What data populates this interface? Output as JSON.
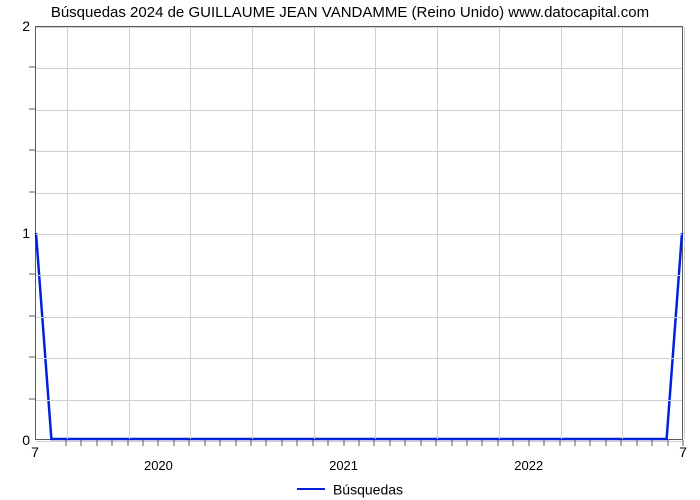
{
  "chart": {
    "type": "line",
    "title": "Búsquedas 2024 de GUILLAUME JEAN VANDAMME (Reino Unido) www.datocapital.com",
    "title_fontsize": 15,
    "title_color": "#000000",
    "background_color": "#ffffff",
    "plot_border_color": "#5b5b5b",
    "grid_color": "#cfcfcf",
    "x_axis": {
      "range_min": 0,
      "range_max": 42,
      "major_gridlines_x": [
        2,
        6,
        10,
        14,
        18,
        22,
        26,
        30,
        34,
        38,
        42
      ],
      "year_labels": [
        {
          "x": 8,
          "label": "2020"
        },
        {
          "x": 20,
          "label": "2021"
        },
        {
          "x": 32,
          "label": "2022"
        }
      ],
      "minor_ticks_x": [
        2,
        3,
        4,
        5,
        6,
        7,
        8,
        9,
        10,
        11,
        12,
        13,
        14,
        15,
        16,
        17,
        18,
        19,
        20,
        21,
        22,
        23,
        24,
        25,
        26,
        27,
        28,
        29,
        30,
        31,
        32,
        33,
        34,
        35,
        36,
        37,
        38,
        39,
        40,
        41,
        42
      ],
      "corner_left_label": "7",
      "corner_right_label": "7",
      "label_fontsize": 13,
      "label_color": "#000000"
    },
    "y_axis": {
      "range_min": 0,
      "range_max": 2,
      "major_ticks_y": [
        0,
        1,
        2
      ],
      "major_gridlines_y": [
        0,
        1,
        2
      ],
      "minor_gridlines_y": [
        0.2,
        0.4,
        0.6,
        0.8,
        1.2,
        1.4,
        1.6,
        1.8
      ],
      "minor_ticks_y": [
        0.2,
        0.4,
        0.6,
        0.8,
        1.2,
        1.4,
        1.6,
        1.8
      ],
      "label_fontsize": 14,
      "label_color": "#000000"
    },
    "series": [
      {
        "name": "Búsquedas",
        "color": "#0021de",
        "line_width": 2.5,
        "points": [
          {
            "x": 0,
            "y": 1
          },
          {
            "x": 1,
            "y": 0
          },
          {
            "x": 41,
            "y": 0
          },
          {
            "x": 42,
            "y": 1
          }
        ]
      }
    ],
    "legend": {
      "position": "bottom-center",
      "items": [
        {
          "label": "Búsquedas",
          "color": "#0021de",
          "line_width": 2.5
        }
      ],
      "fontsize": 14
    }
  }
}
